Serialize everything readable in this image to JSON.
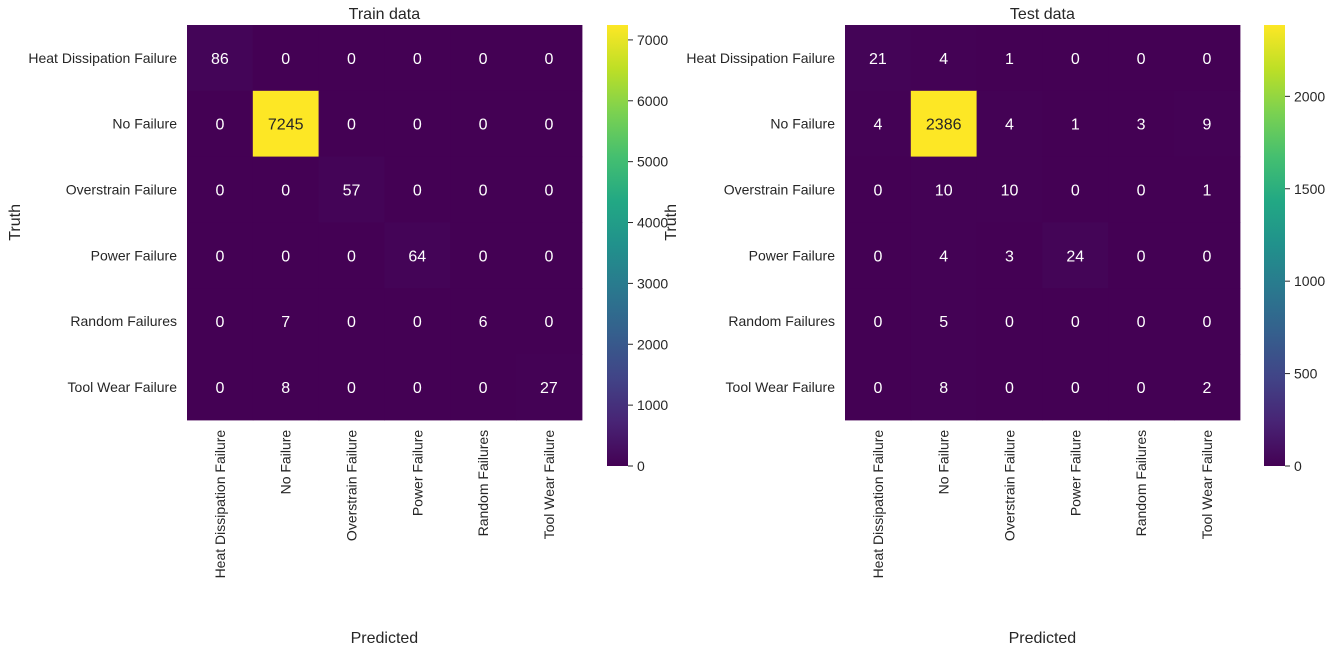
{
  "chart_data": [
    {
      "type": "heatmap",
      "title": "Train data",
      "xlabel": "Predicted",
      "ylabel": "Truth",
      "x_categories": [
        "Heat Dissipation Failure",
        "No Failure",
        "Overstrain Failure",
        "Power Failure",
        "Random Failures",
        "Tool Wear Failure"
      ],
      "y_categories": [
        "Heat Dissipation Failure",
        "No Failure",
        "Overstrain Failure",
        "Power Failure",
        "Random Failures",
        "Tool Wear Failure"
      ],
      "values": [
        [
          86,
          0,
          0,
          0,
          0,
          0
        ],
        [
          0,
          7245,
          0,
          0,
          0,
          0
        ],
        [
          0,
          0,
          57,
          0,
          0,
          0
        ],
        [
          0,
          0,
          0,
          64,
          0,
          0
        ],
        [
          0,
          7,
          0,
          0,
          6,
          0
        ],
        [
          0,
          8,
          0,
          0,
          0,
          27
        ]
      ],
      "colormap": "viridis",
      "vmin": 0,
      "vmax": 7245,
      "colorbar_ticks": [
        0,
        1000,
        2000,
        3000,
        4000,
        5000,
        6000,
        7000
      ]
    },
    {
      "type": "heatmap",
      "title": "Test data",
      "xlabel": "Predicted",
      "ylabel": "Truth",
      "x_categories": [
        "Heat Dissipation Failure",
        "No Failure",
        "Overstrain Failure",
        "Power Failure",
        "Random Failures",
        "Tool Wear Failure"
      ],
      "y_categories": [
        "Heat Dissipation Failure",
        "No Failure",
        "Overstrain Failure",
        "Power Failure",
        "Random Failures",
        "Tool Wear Failure"
      ],
      "values": [
        [
          21,
          4,
          1,
          0,
          0,
          0
        ],
        [
          4,
          2386,
          4,
          1,
          3,
          9
        ],
        [
          0,
          10,
          10,
          0,
          0,
          1
        ],
        [
          0,
          4,
          3,
          24,
          0,
          0
        ],
        [
          0,
          5,
          0,
          0,
          0,
          0
        ],
        [
          0,
          8,
          0,
          0,
          0,
          2
        ]
      ],
      "colormap": "viridis",
      "vmin": 0,
      "vmax": 2386,
      "colorbar_ticks": [
        0,
        500,
        1000,
        1500,
        2000
      ]
    }
  ]
}
